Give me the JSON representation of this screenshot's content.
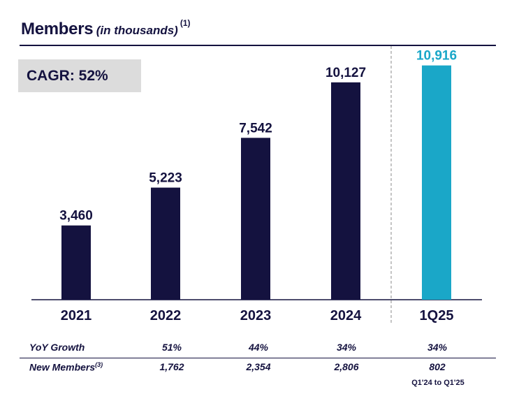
{
  "title": {
    "main": "Members",
    "sub": "(in thousands)",
    "note": "(1)"
  },
  "cagr": "CAGR: 52%",
  "colors": {
    "navy": "#14123f",
    "highlight": "#1aa7c8"
  },
  "chart_data": {
    "type": "bar",
    "title": "Members (in thousands)",
    "categories": [
      "2021",
      "2022",
      "2023",
      "2024",
      "1Q25"
    ],
    "values": [
      3460,
      5223,
      7542,
      10127,
      10916
    ],
    "labels": [
      "3,460",
      "5,223",
      "7,542",
      "10,127",
      "10,916"
    ],
    "highlight_index": 4,
    "ylim": [
      0,
      12500
    ],
    "xlabel": "",
    "ylabel": ""
  },
  "table": {
    "rows": [
      {
        "label": "YoY Growth",
        "sup": "",
        "values": [
          "51%",
          "44%",
          "34%",
          "34%"
        ]
      },
      {
        "label": "New Members",
        "sup": "(3)",
        "values": [
          "1,762",
          "2,354",
          "2,806",
          "802"
        ]
      }
    ],
    "note": "Q1'24 to Q1'25"
  }
}
